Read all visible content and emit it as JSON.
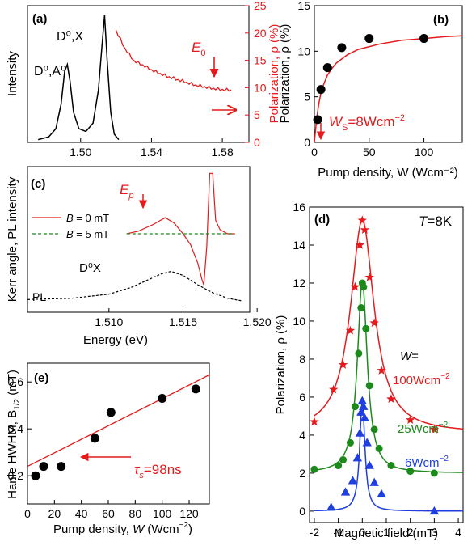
{
  "colors": {
    "axis": "#000000",
    "red": "#e41a1c",
    "green": "#1b8a1b",
    "blue": "#1f3fe0",
    "marker": "#000000"
  },
  "chart_data": [
    {
      "panel": "a",
      "label": "(a)",
      "type": "line",
      "xlim": [
        1.47,
        1.595
      ],
      "x_ticks": [
        "1.50",
        "1.54",
        "1.58"
      ],
      "ylabel": "Intensity",
      "ylabel_right": "Polarization, ρ (%)",
      "y_right_lim": [
        0,
        25
      ],
      "y_right_ticks": [
        "0",
        "5",
        "10",
        "15",
        "20",
        "25"
      ],
      "annotations": {
        "peak1": "D⁰,A⁰",
        "peak2": "D⁰,X",
        "marker": "E",
        "marker_sub": "0"
      },
      "series": [
        {
          "name": "PL intensity",
          "axis": "left",
          "color": "black",
          "x": [
            1.476,
            1.482,
            1.486,
            1.489,
            1.491,
            1.4925,
            1.494,
            1.496,
            1.499,
            1.503,
            1.507,
            1.51,
            1.512,
            1.5135,
            1.515,
            1.517,
            1.519,
            1.5215
          ],
          "y": [
            0.02,
            0.04,
            0.1,
            0.28,
            0.52,
            0.57,
            0.45,
            0.22,
            0.1,
            0.08,
            0.14,
            0.38,
            0.7,
            0.93,
            0.6,
            0.22,
            0.06,
            0.02
          ]
        },
        {
          "name": "Polarization",
          "axis": "right",
          "color": "red",
          "x": [
            1.52,
            1.525,
            1.53,
            1.535,
            1.54,
            1.545,
            1.55,
            1.555,
            1.56,
            1.565,
            1.57,
            1.575,
            1.58,
            1.585
          ],
          "y": [
            20.5,
            17.2,
            15.0,
            14.2,
            13.3,
            12.6,
            12.0,
            11.5,
            11.0,
            10.5,
            10.2,
            9.9,
            9.7,
            9.6
          ]
        }
      ]
    },
    {
      "panel": "b",
      "label": "(b)",
      "type": "scatter",
      "xlabel": "Pump density, W (Wcm⁻²)",
      "ylabel": "Polarization, ρ (%)",
      "xlim": [
        0,
        135
      ],
      "ylim": [
        0,
        15
      ],
      "x_ticks": [
        "0",
        "50",
        "100"
      ],
      "y_ticks": [
        "0",
        "5",
        "10",
        "15"
      ],
      "annotation": "W_S=8Wcm⁻²",
      "points": {
        "x": [
          3,
          6,
          12,
          25,
          50,
          100
        ],
        "y": [
          2.5,
          5.8,
          8.2,
          10.4,
          11.4,
          11.4
        ]
      },
      "fit": {
        "x": [
          0,
          2,
          4,
          6,
          8,
          12,
          16,
          20,
          30,
          40,
          60,
          80,
          100,
          120,
          135
        ],
        "y": [
          0,
          2.5,
          4.2,
          5.4,
          6.2,
          7.4,
          8.1,
          8.7,
          9.6,
          10.2,
          10.8,
          11.2,
          11.4,
          11.6,
          11.7
        ]
      }
    },
    {
      "panel": "c",
      "label": "(c)",
      "type": "line",
      "xlabel": "Energy (eV)",
      "ylabel": "Kerr angle, PL intensity",
      "xlim": [
        1.5045,
        1.5195
      ],
      "x_ticks": [
        "1.510",
        "1.515",
        "1.520"
      ],
      "legend": [
        {
          "name": "B = 0 mT",
          "style": "solid",
          "color": "red"
        },
        {
          "name": "B = 5 mT",
          "style": "dashed",
          "color": "green"
        }
      ],
      "annotations": {
        "pl": "PL",
        "dx": "D⁰X",
        "marker": "E",
        "marker_sub": "p"
      },
      "series": [
        {
          "name": "B = 0 mT",
          "color": "red",
          "x": [
            1.5112,
            1.512,
            1.513,
            1.5138,
            1.5144,
            1.515,
            1.5155,
            1.516,
            1.5163,
            1.5164,
            1.5166,
            1.5168,
            1.517,
            1.5172,
            1.5175,
            1.518,
            1.5185
          ],
          "y": [
            0.0,
            0.02,
            0.07,
            0.12,
            0.08,
            0.0,
            -0.08,
            -0.22,
            -0.35,
            -0.38,
            -0.1,
            0.45,
            0.45,
            0.1,
            0.03,
            0.0,
            0.0
          ]
        },
        {
          "name": "B = 5 mT",
          "color": "green",
          "x": [
            1.5112,
            1.5185
          ],
          "y": [
            0,
            0
          ]
        },
        {
          "name": "PL",
          "color": "black",
          "x": [
            1.5045,
            1.5075,
            1.51,
            1.5115,
            1.5125,
            1.5135,
            1.5142,
            1.515,
            1.516,
            1.517,
            1.518,
            1.519
          ],
          "y": [
            0.01,
            0.02,
            0.05,
            0.1,
            0.15,
            0.2,
            0.22,
            0.19,
            0.12,
            0.06,
            0.02,
            0.0
          ]
        }
      ]
    },
    {
      "panel": "d",
      "label": "(d)",
      "type": "scatter",
      "xlabel": "Magnetic field (mT)",
      "ylabel": "Polarization, ρ (%)",
      "xlim": [
        -2.2,
        4.2
      ],
      "ylim": [
        -0.6,
        16
      ],
      "x_ticks": [
        "-2",
        "-1",
        "0",
        "1",
        "2",
        "3",
        "4"
      ],
      "y_ticks": [
        "0",
        "2",
        "4",
        "6",
        "8",
        "10",
        "12",
        "14",
        "16"
      ],
      "temperature": "T=8K",
      "legend_title": "W=",
      "series": [
        {
          "name": "100Wcm⁻²",
          "color": "red",
          "marker": "star",
          "points": {
            "x": [
              -2,
              -1.2,
              -0.8,
              -0.5,
              -0.3,
              -0.1,
              0,
              0.1,
              0.3,
              0.5,
              0.8,
              1.2,
              2,
              3
            ],
            "y": [
              4.7,
              6.4,
              7.7,
              9.5,
              11.8,
              14.0,
              15.3,
              14.8,
              12.3,
              9.9,
              7.4,
              5.9,
              4.8,
              4.3
            ]
          },
          "fit": {
            "x0": 0,
            "base": 4.1,
            "amp": 11.2,
            "hwhm": 0.6
          }
        },
        {
          "name": "25Wcm⁻²",
          "color": "green",
          "marker": "circle",
          "points": {
            "x": [
              -2,
              -1,
              -0.8,
              -0.5,
              -0.3,
              -0.15,
              -0.05,
              0,
              0.05,
              0.15,
              0.3,
              0.5,
              0.7,
              1.2,
              2,
              3
            ],
            "y": [
              2.2,
              2.4,
              2.7,
              3.6,
              5.5,
              8.3,
              10.7,
              12.0,
              11.8,
              9.6,
              6.6,
              4.3,
              3.3,
              2.4,
              2.1,
              2.0
            ]
          },
          "fit": {
            "x0": 0,
            "base": 2.0,
            "amp": 10.1,
            "hwhm": 0.25
          }
        },
        {
          "name": "6Wcm⁻²",
          "color": "blue",
          "marker": "triangle",
          "points": {
            "x": [
              -1.3,
              -0.7,
              -0.4,
              -0.2,
              -0.1,
              -0.05,
              0,
              0.05,
              0.1,
              0.2,
              0.3,
              0.5,
              0.8,
              3
            ],
            "y": [
              0.2,
              1.0,
              1.6,
              2.8,
              4.1,
              5.2,
              5.8,
              5.5,
              4.9,
              3.6,
              2.4,
              1.5,
              0.9,
              0.0
            ]
          },
          "fit": {
            "x0": 0,
            "base": 0.0,
            "amp": 5.8,
            "hwhm": 0.13
          }
        }
      ]
    },
    {
      "panel": "e",
      "label": "(e)",
      "type": "scatter",
      "xlabel": "Pump density, W (Wcm⁻²)",
      "ylabel": "Hanle HWHM, B₁/₂ (mT)",
      "xlim": [
        0,
        135
      ],
      "ylim": [
        0.08,
        0.68
      ],
      "x_ticks": [
        "0",
        "20",
        "40",
        "60",
        "80",
        "100",
        "120"
      ],
      "y_ticks": [
        "0.2",
        "0.4",
        "0.6"
      ],
      "annotation": "τ_s=98ns",
      "points": {
        "x": [
          6,
          12,
          25,
          50,
          62,
          100,
          125
        ],
        "y": [
          0.2,
          0.24,
          0.24,
          0.36,
          0.47,
          0.53,
          0.57
        ]
      },
      "fit": {
        "x": [
          0,
          135
        ],
        "y": [
          0.24,
          0.63
        ]
      }
    }
  ]
}
